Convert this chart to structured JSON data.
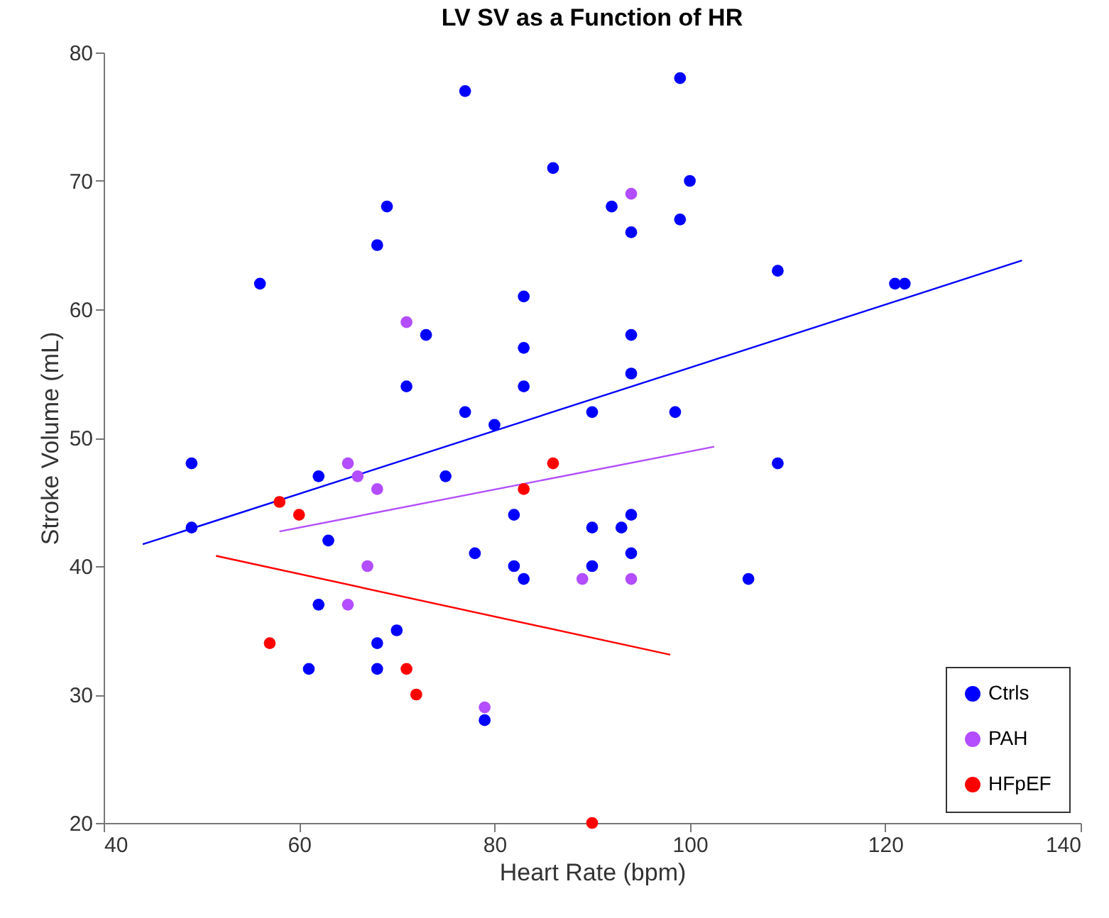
{
  "chart_data": {
    "type": "scatter",
    "title": "LV SV as a Function of HR",
    "xlabel": "Heart Rate (bpm)",
    "ylabel": "Stroke Volume (mL)",
    "xlim": [
      40,
      140
    ],
    "xticks": [
      40,
      60,
      80,
      100,
      120,
      140
    ],
    "ylim": [
      20,
      80
    ],
    "yticks": [
      20,
      30,
      40,
      50,
      60,
      70,
      80
    ],
    "grid": false,
    "legend": "bottom right",
    "marker": "circle",
    "series": [
      {
        "name": "Ctrls",
        "color": "#0000ff",
        "x": [
          49,
          49,
          56,
          62,
          63,
          62,
          61,
          68,
          68,
          70,
          68,
          69,
          71,
          73,
          75,
          77,
          77,
          78,
          80,
          82,
          82,
          83,
          83,
          83,
          83,
          86,
          90,
          90,
          90,
          92,
          93,
          94,
          94,
          94,
          94,
          94,
          98.5,
          99,
          99,
          100,
          106,
          109,
          109,
          121,
          122,
          79
        ],
        "values": [
          48,
          43,
          62,
          47,
          42,
          37,
          32,
          34,
          32,
          35,
          65,
          68,
          54,
          58,
          47,
          52,
          77,
          41,
          51,
          44,
          40,
          39,
          54,
          57,
          61,
          71,
          52,
          43,
          40,
          68,
          43,
          66,
          58,
          55,
          44,
          41,
          52,
          78,
          67,
          70,
          39,
          63,
          48,
          62,
          62,
          28
        ]
      },
      {
        "type": "line",
        "marker": "none",
        "color": "#0000ff",
        "x": [
          44,
          134
        ],
        "values": [
          41.7,
          63.8
        ]
      },
      {
        "name": "PAH",
        "color": "#b34dff",
        "x": [
          65,
          66,
          68,
          71,
          67,
          65,
          79,
          89,
          94,
          94
        ],
        "values": [
          48,
          47,
          46,
          59,
          40,
          37,
          29,
          39,
          39,
          69
        ]
      },
      {
        "type": "line",
        "marker": "none",
        "color": "#b34dff",
        "x": [
          58,
          102.5
        ],
        "values": [
          42.7,
          49.3
        ]
      },
      {
        "name": "HFpEF",
        "color": "#ff0000",
        "x": [
          58,
          60,
          57,
          71,
          72,
          83,
          86,
          90
        ],
        "values": [
          45,
          44,
          34,
          32,
          30,
          46,
          48,
          20
        ]
      },
      {
        "type": "line",
        "marker": "none",
        "color": "#ff0000",
        "x": [
          51.5,
          98
        ],
        "values": [
          40.8,
          33.1
        ]
      }
    ]
  }
}
